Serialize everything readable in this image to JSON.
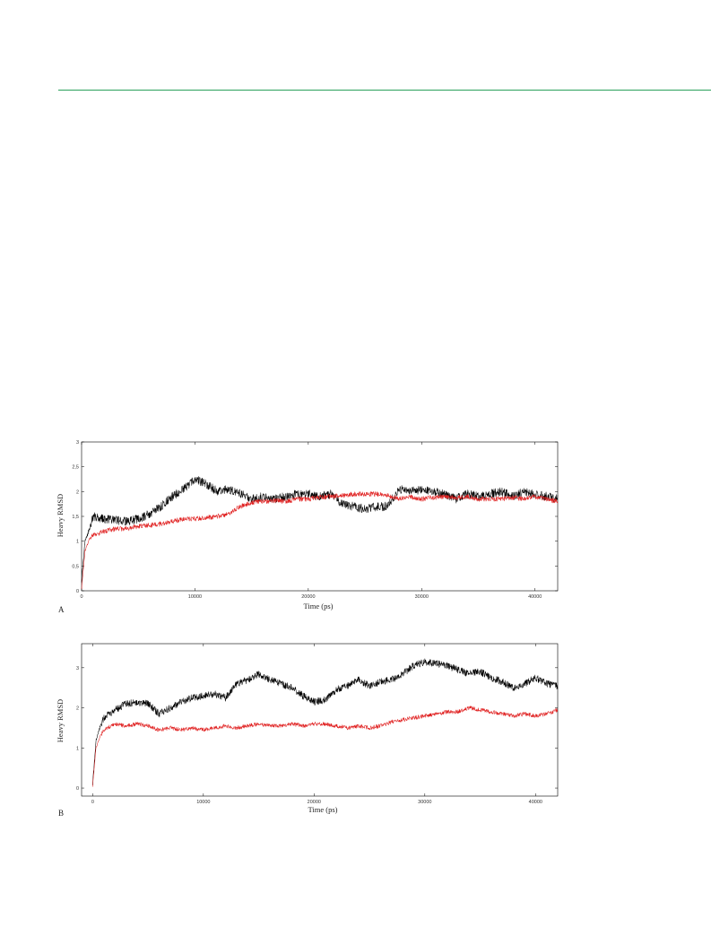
{
  "chart_data": [
    {
      "type": "line",
      "panel_label": "A",
      "xlabel": "Time (ps)",
      "ylabel": "Heavy RMSD",
      "xlim": [
        0,
        42000
      ],
      "ylim": [
        0,
        3
      ],
      "x_ticks": [
        0,
        10000,
        20000,
        30000,
        40000
      ],
      "x_tick_labels": [
        "0",
        "10000",
        "20000",
        "30000",
        "40000"
      ],
      "y_ticks": [
        0,
        0.5,
        1,
        1.5,
        2,
        2.5,
        3
      ],
      "y_tick_labels": [
        "0",
        "0,5",
        "1",
        "1,5",
        "2",
        "2,5",
        "3"
      ],
      "grid": false,
      "series": [
        {
          "color": "#000000",
          "x": [
            0,
            300,
            700,
            1000,
            2000,
            3000,
            4000,
            5000,
            6000,
            7000,
            8000,
            9000,
            10000,
            11000,
            12000,
            13000,
            14000,
            15000,
            16000,
            17000,
            18000,
            19000,
            20000,
            21000,
            22000,
            23000,
            24000,
            25000,
            26000,
            27000,
            28000,
            29000,
            30000,
            31000,
            32000,
            33000,
            34000,
            35000,
            36000,
            37000,
            38000,
            39000,
            40000,
            41000,
            42000
          ],
          "values": [
            0.2,
            1.0,
            1.25,
            1.5,
            1.45,
            1.42,
            1.4,
            1.45,
            1.55,
            1.7,
            1.9,
            2.05,
            2.25,
            2.15,
            2.0,
            2.05,
            1.95,
            1.85,
            1.9,
            1.85,
            1.9,
            1.95,
            1.95,
            1.9,
            1.95,
            1.75,
            1.7,
            1.65,
            1.7,
            1.7,
            2.05,
            2.0,
            2.05,
            2.0,
            1.95,
            1.85,
            1.95,
            1.9,
            1.95,
            2.0,
            1.9,
            2.0,
            1.95,
            1.9,
            1.85
          ]
        },
        {
          "color": "#e02020",
          "x": [
            0,
            300,
            700,
            1000,
            2000,
            3000,
            4000,
            5000,
            6000,
            7000,
            8000,
            9000,
            10000,
            11000,
            12000,
            13000,
            14000,
            15000,
            16000,
            17000,
            18000,
            19000,
            20000,
            21000,
            22000,
            23000,
            24000,
            25000,
            26000,
            27000,
            28000,
            29000,
            30000,
            31000,
            32000,
            33000,
            34000,
            35000,
            36000,
            37000,
            38000,
            39000,
            40000,
            41000,
            42000
          ],
          "values": [
            0.05,
            0.8,
            1.05,
            1.12,
            1.2,
            1.25,
            1.25,
            1.3,
            1.32,
            1.35,
            1.4,
            1.45,
            1.45,
            1.48,
            1.5,
            1.55,
            1.7,
            1.78,
            1.8,
            1.82,
            1.8,
            1.85,
            1.85,
            1.88,
            1.9,
            1.92,
            1.95,
            1.95,
            1.95,
            1.92,
            1.85,
            1.9,
            1.85,
            1.88,
            1.9,
            1.88,
            1.9,
            1.85,
            1.85,
            1.85,
            1.88,
            1.85,
            1.9,
            1.85,
            1.8
          ]
        }
      ]
    },
    {
      "type": "line",
      "panel_label": "B",
      "xlabel": "Time (ps)",
      "ylabel": "Heavy RMSD",
      "xlim": [
        -1000,
        42000
      ],
      "ylim": [
        -0.2,
        3.6
      ],
      "x_ticks": [
        0,
        10000,
        20000,
        30000,
        40000
      ],
      "x_tick_labels": [
        "0",
        "10000",
        "20000",
        "30000",
        "40000"
      ],
      "y_ticks": [
        0,
        1,
        2,
        3
      ],
      "y_tick_labels": [
        "0",
        "1",
        "2",
        "3"
      ],
      "grid": false,
      "series": [
        {
          "color": "#000000",
          "x": [
            0,
            300,
            700,
            1000,
            2000,
            3000,
            4000,
            5000,
            6000,
            7000,
            8000,
            9000,
            10000,
            11000,
            12000,
            13000,
            14000,
            15000,
            16000,
            17000,
            18000,
            19000,
            20000,
            21000,
            22000,
            23000,
            24000,
            25000,
            26000,
            27000,
            28000,
            29000,
            30000,
            31000,
            32000,
            33000,
            34000,
            35000,
            36000,
            37000,
            38000,
            39000,
            40000,
            41000,
            42000
          ],
          "values": [
            0.1,
            1.2,
            1.55,
            1.75,
            1.95,
            2.1,
            2.15,
            2.1,
            1.85,
            2.0,
            2.15,
            2.25,
            2.3,
            2.35,
            2.25,
            2.6,
            2.7,
            2.85,
            2.7,
            2.6,
            2.5,
            2.3,
            2.15,
            2.2,
            2.45,
            2.55,
            2.7,
            2.55,
            2.65,
            2.7,
            2.85,
            3.05,
            3.15,
            3.1,
            3.05,
            2.95,
            2.85,
            2.9,
            2.75,
            2.65,
            2.5,
            2.6,
            2.75,
            2.6,
            2.55
          ]
        },
        {
          "color": "#e02020",
          "x": [
            0,
            300,
            700,
            1000,
            2000,
            3000,
            4000,
            5000,
            6000,
            7000,
            8000,
            9000,
            10000,
            11000,
            12000,
            13000,
            14000,
            15000,
            16000,
            17000,
            18000,
            19000,
            20000,
            21000,
            22000,
            23000,
            24000,
            25000,
            26000,
            27000,
            28000,
            29000,
            30000,
            31000,
            32000,
            33000,
            34000,
            35000,
            36000,
            37000,
            38000,
            39000,
            40000,
            41000,
            42000
          ],
          "values": [
            0.05,
            1.0,
            1.3,
            1.45,
            1.6,
            1.55,
            1.6,
            1.55,
            1.45,
            1.5,
            1.45,
            1.5,
            1.45,
            1.5,
            1.55,
            1.5,
            1.55,
            1.6,
            1.55,
            1.55,
            1.6,
            1.55,
            1.6,
            1.6,
            1.55,
            1.5,
            1.55,
            1.5,
            1.55,
            1.65,
            1.7,
            1.75,
            1.8,
            1.85,
            1.9,
            1.9,
            2.0,
            1.95,
            1.9,
            1.85,
            1.8,
            1.85,
            1.8,
            1.85,
            1.95
          ]
        }
      ]
    }
  ]
}
